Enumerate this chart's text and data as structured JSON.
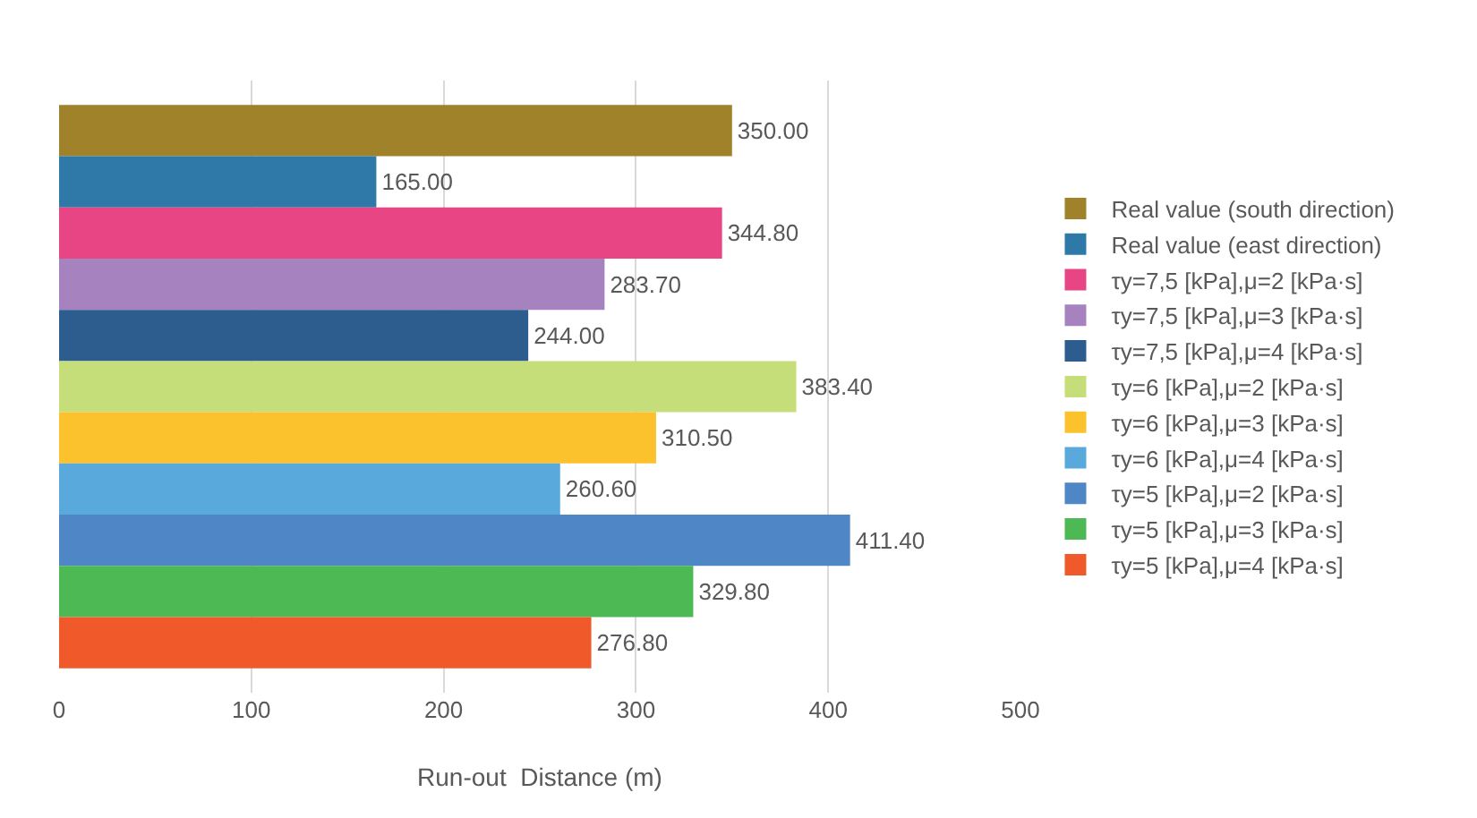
{
  "chart_data": {
    "type": "bar",
    "orientation": "horizontal",
    "xlabel": "Run-out  Distance (m)",
    "categories": [
      null
    ],
    "xlim": [
      0,
      500
    ],
    "xticks": [
      0,
      100,
      200,
      300,
      400,
      500
    ],
    "grid": "x",
    "legend": "right",
    "tick_labels": "x",
    "series": [
      {
        "name": "Real value (south direction)",
        "color": "#a0822a",
        "values": [
          350.0
        ],
        "value_labels": [
          "350.00"
        ]
      },
      {
        "name": "Real value (east direction)",
        "color": "#2e79a8",
        "values": [
          165.0
        ],
        "value_labels": [
          "165.00"
        ]
      },
      {
        "name": "τy=7,5 [kPa],μ=2 [kPa·s]",
        "color": "#e84585",
        "values": [
          344.8
        ],
        "value_labels": [
          "344.80"
        ]
      },
      {
        "name": "τy=7,5 [kPa],μ=3 [kPa·s]",
        "color": "#a682bf",
        "values": [
          283.7
        ],
        "value_labels": [
          "283.70"
        ]
      },
      {
        "name": "τy=7,5 [kPa],μ=4 [kPa·s]",
        "color": "#2d5c8f",
        "values": [
          244.0
        ],
        "value_labels": [
          "244.00"
        ]
      },
      {
        "name": "τy=6 [kPa],μ=2 [kPa·s]",
        "color": "#c5de7a",
        "values": [
          383.4
        ],
        "value_labels": [
          "383.40"
        ]
      },
      {
        "name": "τy=6 [kPa],μ=3 [kPa·s]",
        "color": "#fcc22d",
        "values": [
          310.5
        ],
        "value_labels": [
          "310.50"
        ]
      },
      {
        "name": "τy=6 [kPa],μ=4 [kPa·s]",
        "color": "#5aa9dc",
        "values": [
          260.6
        ],
        "value_labels": [
          "260.60"
        ]
      },
      {
        "name": "τy=5 [kPa],μ=2 [kPa·s]",
        "color": "#4f86c6",
        "values": [
          411.4
        ],
        "value_labels": [
          "411.40"
        ]
      },
      {
        "name": "τy=5 [kPa],μ=3 [kPa·s]",
        "color": "#4cb954",
        "values": [
          329.8
        ],
        "value_labels": [
          "329.80"
        ]
      },
      {
        "name": "τy=5 [kPa],μ=4 [kPa·s]",
        "color": "#f05a2b",
        "values": [
          276.8
        ],
        "value_labels": [
          "276.80"
        ]
      }
    ]
  }
}
